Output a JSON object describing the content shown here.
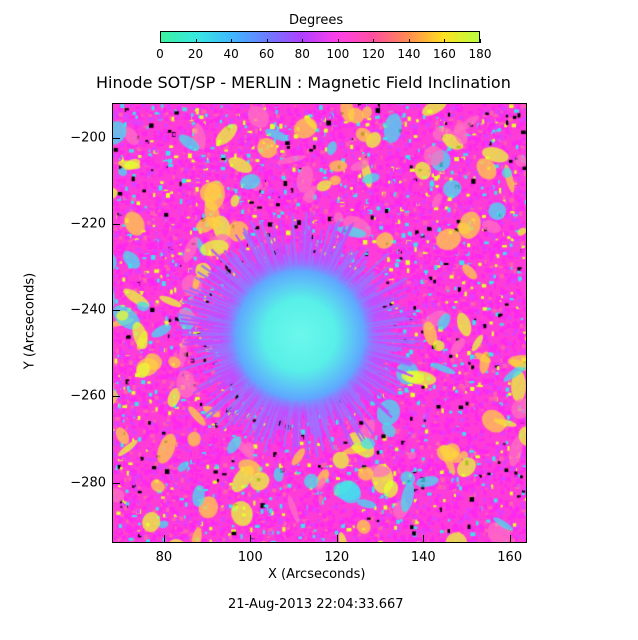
{
  "colorbar": {
    "label": "Degrees",
    "ticks": [
      "0",
      "20",
      "40",
      "60",
      "80",
      "100",
      "120",
      "140",
      "160",
      "180"
    ],
    "min": 0,
    "max": 180,
    "colors": [
      "#3cf0a0",
      "#38e8e0",
      "#40b8ff",
      "#6c7cff",
      "#b040ff",
      "#ff40e8",
      "#ff50a0",
      "#ff8c50",
      "#ffe020",
      "#b8ff40"
    ]
  },
  "title": "Hinode SOT/SP - MERLIN : Magnetic Field Inclination",
  "axes": {
    "xlabel": "X (Arcseconds)",
    "ylabel": "Y (Arcseconds)",
    "xticks": [
      "80",
      "100",
      "120",
      "140",
      "160"
    ],
    "yticks": [
      "-200",
      "-220",
      "-240",
      "-260",
      "-280"
    ],
    "xlim": [
      68,
      164
    ],
    "ylim": [
      -294,
      -192
    ]
  },
  "timestamp": "21-Aug-2013 22:04:33.667",
  "image": {
    "background_color": "#ff3cd8",
    "umbra_color": "#58f0e8",
    "penumbra_color": "#a070ff",
    "patch_colors": [
      "#e8ff30",
      "#ffd040",
      "#40e0f0",
      "#ff70c0"
    ]
  }
}
